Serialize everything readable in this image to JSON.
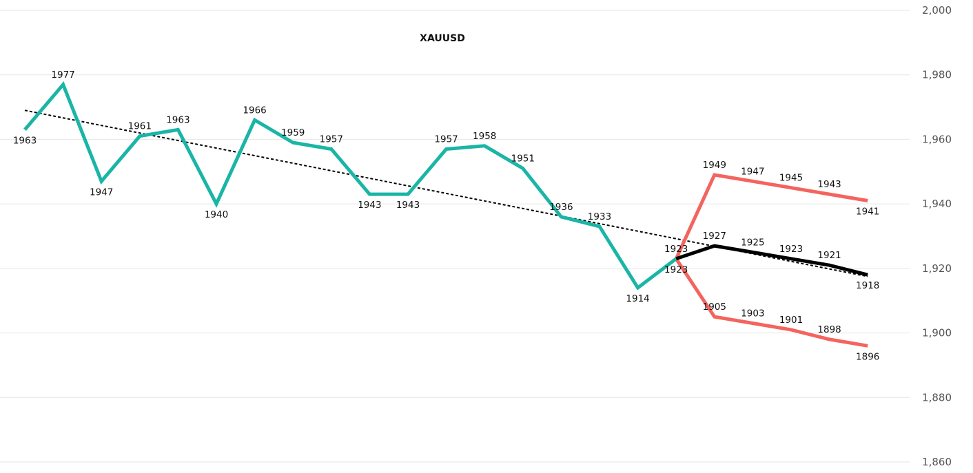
{
  "chart_data": {
    "type": "line",
    "title": "XAUUSD",
    "ylim": [
      1860,
      2000
    ],
    "y_ticks": [
      "1,860",
      "1,880",
      "1,900",
      "1,920",
      "1,940",
      "1,960",
      "1,980",
      "2,000"
    ],
    "y_tick_values": [
      1860,
      1880,
      1900,
      1920,
      1940,
      1960,
      1980,
      2000
    ],
    "grid": true,
    "y_axis_position": "right",
    "x": [
      0,
      1,
      2,
      3,
      4,
      5,
      6,
      7,
      8,
      9,
      10,
      11,
      12,
      13,
      14,
      15,
      16,
      17,
      18,
      19,
      20,
      21,
      22
    ],
    "series": [
      {
        "color": "#1ab5a6",
        "points": [
          [
            0,
            1963
          ],
          [
            1,
            1977
          ],
          [
            2,
            1947
          ],
          [
            3,
            1961
          ],
          [
            4,
            1963
          ],
          [
            5,
            1940
          ],
          [
            6,
            1966
          ],
          [
            7,
            1959
          ],
          [
            8,
            1957
          ],
          [
            9,
            1943
          ],
          [
            10,
            1943
          ],
          [
            11,
            1957
          ],
          [
            12,
            1958
          ],
          [
            13,
            1951
          ],
          [
            14,
            1936
          ],
          [
            15,
            1933
          ],
          [
            16,
            1914
          ],
          [
            17,
            1923
          ]
        ],
        "labels": [
          "1963",
          "1977",
          "1947",
          "1961",
          "1963",
          "1940",
          "1966",
          "1959",
          "1957",
          "1943",
          "1943",
          "1957",
          "1958",
          "1951",
          "1936",
          "1933",
          "1914",
          "1923"
        ]
      },
      {
        "color": "#000000",
        "points": [
          [
            17,
            1923
          ],
          [
            18,
            1927
          ],
          [
            19,
            1925
          ],
          [
            20,
            1923
          ],
          [
            21,
            1921
          ],
          [
            22,
            1918
          ]
        ],
        "labels": [
          "1923",
          "1927",
          "1925",
          "1923",
          "1921",
          "1918"
        ]
      },
      {
        "color": "#f4645f",
        "points": [
          [
            17,
            1923
          ],
          [
            18,
            1949
          ],
          [
            19,
            1947
          ],
          [
            20,
            1945
          ],
          [
            21,
            1943
          ],
          [
            22,
            1941
          ]
        ],
        "labels": [
          "",
          "1949",
          "1947",
          "1945",
          "1943",
          "1941"
        ]
      },
      {
        "color": "#f4645f",
        "points": [
          [
            17,
            1923
          ],
          [
            18,
            1905
          ],
          [
            19,
            1903
          ],
          [
            20,
            1901
          ],
          [
            21,
            1898
          ],
          [
            22,
            1896
          ]
        ],
        "labels": [
          "",
          "1905",
          "1903",
          "1901",
          "1898",
          "1896"
        ]
      }
    ],
    "trendline": {
      "style": "dotted",
      "color": "#000000",
      "points": [
        [
          0,
          1969
        ],
        [
          22,
          1917.5
        ]
      ]
    }
  }
}
